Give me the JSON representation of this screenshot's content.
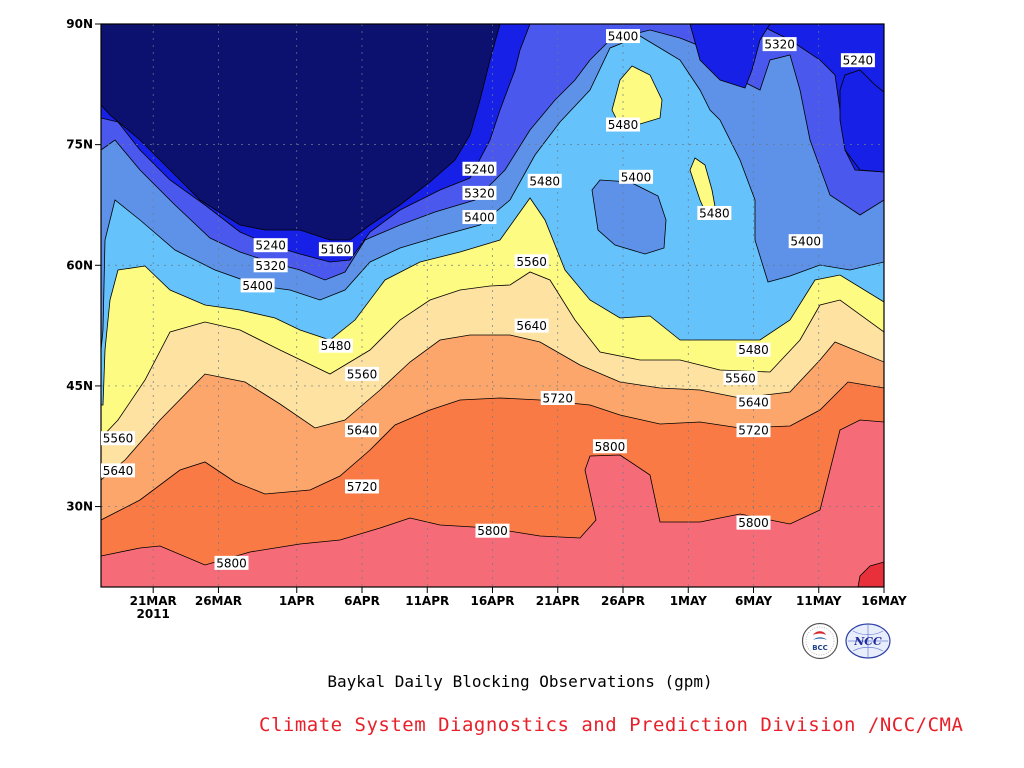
{
  "caption": "Baykal Daily Blocking Observations (gpm)",
  "credit": "Climate System Diagnostics and Prediction Division /NCC/CMA",
  "logos": {
    "left_text": "BCC",
    "right_text": "NCC"
  },
  "chart_data": {
    "type": "contour",
    "title": "Baykal Daily Blocking Observations (gpm)",
    "x_ticks": [
      "21MAR",
      "26MAR",
      "1APR",
      "6APR",
      "11APR",
      "16APR",
      "21APR",
      "26APR",
      "1MAY",
      "6MAY",
      "11MAY",
      "16MAY"
    ],
    "x_tick_year": "2011",
    "x_range": [
      "2011-03-17",
      "2011-05-16"
    ],
    "y_ticks": [
      "30N",
      "45N",
      "60N",
      "75N",
      "90N"
    ],
    "y_range": [
      20,
      90
    ],
    "contour_levels": [
      5160,
      5240,
      5320,
      5400,
      5480,
      5560,
      5640,
      5720,
      5800
    ],
    "fill_colors": [
      "#0c116f",
      "#1620e6",
      "#4a58ee",
      "#5d92e8",
      "#65c2fa",
      "#fdfb82",
      "#fde2a2",
      "#fca66c",
      "#fa7a45",
      "#f56c78",
      "#e8303a"
    ],
    "contour_labels": [
      {
        "text": "5400",
        "date": "2011-04-26",
        "lat": 88.5
      },
      {
        "text": "5320",
        "date": "2011-05-08",
        "lat": 87.5
      },
      {
        "text": "5240",
        "date": "2011-05-14",
        "lat": 85.5
      },
      {
        "text": "5480",
        "date": "2011-04-26",
        "lat": 77.5
      },
      {
        "text": "5240",
        "date": "2011-04-15",
        "lat": 72
      },
      {
        "text": "5320",
        "date": "2011-04-15",
        "lat": 69
      },
      {
        "text": "5400",
        "date": "2011-04-15",
        "lat": 66
      },
      {
        "text": "5480",
        "date": "2011-04-20",
        "lat": 70.5
      },
      {
        "text": "5400",
        "date": "2011-04-27",
        "lat": 71
      },
      {
        "text": "5480",
        "date": "2011-05-03",
        "lat": 66.5
      },
      {
        "text": "5400",
        "date": "2011-05-10",
        "lat": 63
      },
      {
        "text": "5240",
        "date": "2011-03-30",
        "lat": 62.5
      },
      {
        "text": "5160",
        "date": "2011-04-04",
        "lat": 62
      },
      {
        "text": "5320",
        "date": "2011-03-30",
        "lat": 60
      },
      {
        "text": "5400",
        "date": "2011-03-29",
        "lat": 57.5
      },
      {
        "text": "5560",
        "date": "2011-04-19",
        "lat": 60.5
      },
      {
        "text": "5640",
        "date": "2011-04-19",
        "lat": 52.5
      },
      {
        "text": "5480",
        "date": "2011-04-04",
        "lat": 50
      },
      {
        "text": "5480",
        "date": "2011-05-06",
        "lat": 49.5
      },
      {
        "text": "5560",
        "date": "2011-04-06",
        "lat": 46.5
      },
      {
        "text": "5560",
        "date": "2011-05-05",
        "lat": 46
      },
      {
        "text": "5640",
        "date": "2011-05-06",
        "lat": 43
      },
      {
        "text": "5720",
        "date": "2011-04-21",
        "lat": 43.5
      },
      {
        "text": "5720",
        "date": "2011-05-06",
        "lat": 39.5
      },
      {
        "text": "5640",
        "date": "2011-04-06",
        "lat": 39.5
      },
      {
        "text": "5560",
        "date": "2011-03-17",
        "lat": 38.5
      },
      {
        "text": "5800",
        "date": "2011-04-25",
        "lat": 37.5
      },
      {
        "text": "5640",
        "date": "2011-03-17",
        "lat": 34.5
      },
      {
        "text": "5720",
        "date": "2011-04-06",
        "lat": 32.5
      },
      {
        "text": "5800",
        "date": "2011-04-16",
        "lat": 27
      },
      {
        "text": "5800",
        "date": "2011-05-06",
        "lat": 28
      },
      {
        "text": "5800",
        "date": "2011-03-27",
        "lat": 23
      }
    ]
  }
}
